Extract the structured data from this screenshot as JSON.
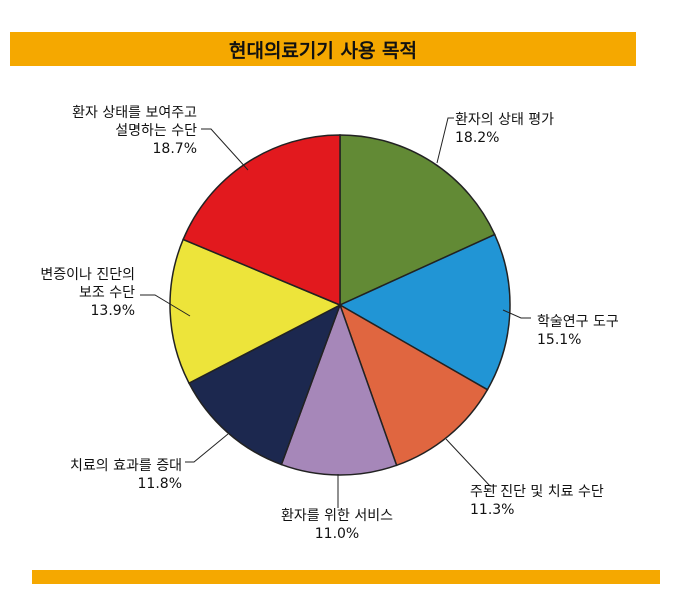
{
  "colors": {
    "banner": "#F5A800",
    "leader": "#222222",
    "slice_edge": "#222222"
  },
  "chart_data": {
    "type": "pie",
    "title": "현대의료기기 사용 목적",
    "start": "12 o'clock",
    "direction": "clockwise",
    "slices": [
      {
        "label": "환자의 상태 평가",
        "lines": [
          "환자의 상태 평가"
        ],
        "value": 18.2,
        "value_label": "18.2%",
        "color": "#628A35"
      },
      {
        "label": "학술연구 도구",
        "lines": [
          "학술연구 도구"
        ],
        "value": 15.1,
        "value_label": "15.1%",
        "color": "#2195D5"
      },
      {
        "label": "주된 진단 및 치료 수단",
        "lines": [
          "주된 진단 및 치료 수단"
        ],
        "value": 11.3,
        "value_label": "11.3%",
        "color": "#E06640"
      },
      {
        "label": "환자를 위한 서비스",
        "lines": [
          "환자를 위한 서비스"
        ],
        "value": 11.0,
        "value_label": "11.0%",
        "color": "#A687B9"
      },
      {
        "label": "치료의 효과를 증대",
        "lines": [
          "치료의 효과를 증대"
        ],
        "value": 11.8,
        "value_label": "11.8%",
        "color": "#1C284F"
      },
      {
        "label": "변증이나 진단의 보조 수단",
        "lines": [
          "변증이나 진단의",
          "보조 수단"
        ],
        "value": 13.9,
        "value_label": "13.9%",
        "color": "#EDE43A"
      },
      {
        "label": "환자 상태를 보여주고 설명하는 수단",
        "lines": [
          "환자 상태를 보여주고",
          "설명하는 수단"
        ],
        "value": 18.7,
        "value_label": "18.7%",
        "color": "#E2191E"
      }
    ]
  }
}
